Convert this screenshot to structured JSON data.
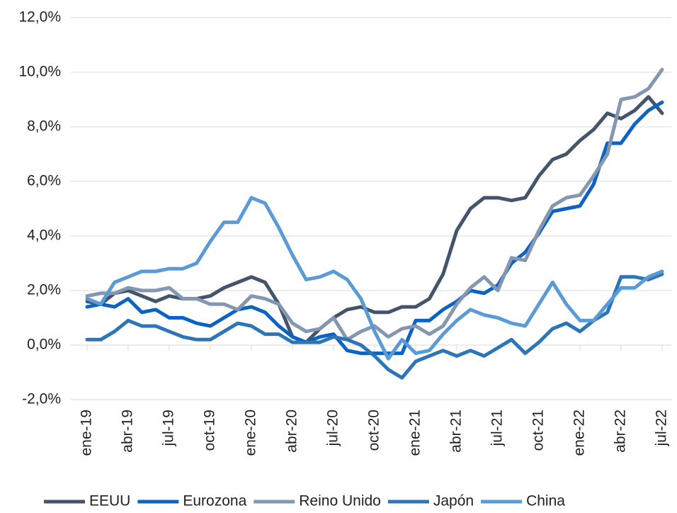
{
  "chart_data": {
    "type": "line",
    "categories": [
      "ene-19",
      null,
      null,
      "abr-19",
      null,
      null,
      "jul-19",
      null,
      null,
      "oct-19",
      null,
      null,
      "ene-20",
      null,
      null,
      "abr-20",
      null,
      null,
      "jul-20",
      null,
      null,
      "oct-20",
      null,
      null,
      "ene-21",
      null,
      null,
      "abr-21",
      null,
      null,
      "jul-21",
      null,
      null,
      "oct-21",
      null,
      null,
      "ene-22",
      null,
      null,
      "abr-22",
      null,
      null,
      "jul-22"
    ],
    "series": [
      {
        "name": "EEUU",
        "color": "#44546a",
        "values": [
          1.6,
          1.5,
          1.9,
          2.0,
          1.8,
          1.6,
          1.8,
          1.7,
          1.7,
          1.8,
          2.1,
          2.3,
          2.5,
          2.3,
          1.5,
          0.3,
          0.1,
          0.6,
          1.0,
          1.3,
          1.4,
          1.2,
          1.2,
          1.4,
          1.4,
          1.7,
          2.6,
          4.2,
          5.0,
          5.4,
          5.4,
          5.3,
          5.4,
          6.2,
          6.8,
          7.0,
          7.5,
          7.9,
          8.5,
          8.3,
          8.6,
          9.1,
          8.5
        ]
      },
      {
        "name": "Eurozona",
        "color": "#0b63c4",
        "values": [
          1.4,
          1.5,
          1.4,
          1.7,
          1.2,
          1.3,
          1.0,
          1.0,
          0.8,
          0.7,
          1.0,
          1.3,
          1.4,
          1.2,
          0.7,
          0.3,
          0.1,
          0.3,
          0.4,
          -0.2,
          -0.3,
          -0.3,
          -0.3,
          -0.3,
          0.9,
          0.9,
          1.3,
          1.6,
          2.0,
          1.9,
          2.2,
          3.0,
          3.4,
          4.1,
          4.9,
          5.0,
          5.1,
          5.9,
          7.4,
          7.4,
          8.1,
          8.6,
          8.9
        ]
      },
      {
        "name": "Reino Unido",
        "color": "#8497b0",
        "values": [
          1.8,
          1.9,
          1.9,
          2.1,
          2.0,
          2.0,
          2.1,
          1.7,
          1.7,
          1.5,
          1.5,
          1.3,
          1.8,
          1.7,
          1.5,
          0.8,
          0.5,
          0.6,
          1.0,
          0.2,
          0.5,
          0.7,
          0.3,
          0.6,
          0.7,
          0.4,
          0.7,
          1.5,
          2.1,
          2.5,
          2.0,
          3.2,
          3.1,
          4.2,
          5.1,
          5.4,
          5.5,
          6.2,
          7.0,
          9.0,
          9.1,
          9.4,
          10.1
        ]
      },
      {
        "name": "Japón",
        "color": "#2e75b6",
        "values": [
          0.2,
          0.2,
          0.5,
          0.9,
          0.7,
          0.7,
          0.5,
          0.3,
          0.2,
          0.2,
          0.5,
          0.8,
          0.7,
          0.4,
          0.4,
          0.1,
          0.1,
          0.1,
          0.3,
          0.2,
          0.0,
          -0.4,
          -0.9,
          -1.2,
          -0.6,
          -0.4,
          -0.2,
          -0.4,
          -0.2,
          -0.4,
          -0.1,
          0.2,
          -0.3,
          0.1,
          0.6,
          0.8,
          0.5,
          0.9,
          1.2,
          2.5,
          2.5,
          2.4,
          2.6
        ]
      },
      {
        "name": "China",
        "color": "#5b9bd5",
        "values": [
          1.7,
          1.5,
          2.3,
          2.5,
          2.7,
          2.7,
          2.8,
          2.8,
          3.0,
          3.8,
          4.5,
          4.5,
          5.4,
          5.2,
          4.3,
          3.3,
          2.4,
          2.5,
          2.7,
          2.4,
          1.7,
          0.5,
          -0.5,
          0.2,
          -0.3,
          -0.2,
          0.4,
          0.9,
          1.3,
          1.1,
          1.0,
          0.8,
          0.7,
          1.5,
          2.3,
          1.5,
          0.9,
          0.9,
          1.5,
          2.1,
          2.1,
          2.5,
          2.7
        ]
      }
    ],
    "ylim": [
      -2,
      12
    ],
    "yticks": [
      {
        "value": -2,
        "label": "-2,0%"
      },
      {
        "value": 0,
        "label": "0,0%"
      },
      {
        "value": 2,
        "label": "2,0%"
      },
      {
        "value": 4,
        "label": "4,0%"
      },
      {
        "value": 6,
        "label": "6,0%"
      },
      {
        "value": 8,
        "label": "8,0%"
      },
      {
        "value": 10,
        "label": "10,0%"
      },
      {
        "value": 12,
        "label": "12,0%"
      }
    ],
    "grid": true
  }
}
